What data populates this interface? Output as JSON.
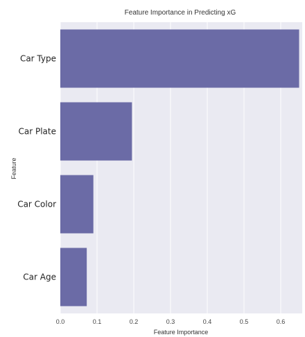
{
  "chart_data": {
    "type": "bar",
    "orientation": "horizontal",
    "title": "Feature Importance in Predicting xG",
    "xlabel": "Feature Importance",
    "ylabel": "Feature",
    "categories": [
      "Car Type",
      "Car Plate",
      "Car Color",
      "Car Age"
    ],
    "values": [
      0.65,
      0.195,
      0.09,
      0.072
    ],
    "xlim": [
      0,
      0.66
    ],
    "xticks": [
      "0.0",
      "0.1",
      "0.2",
      "0.3",
      "0.4",
      "0.5",
      "0.6"
    ],
    "grid": true,
    "colors": {
      "bar": "#6B6BA6",
      "plot_background": "#EAEAF2",
      "grid": "#ffffff"
    }
  }
}
